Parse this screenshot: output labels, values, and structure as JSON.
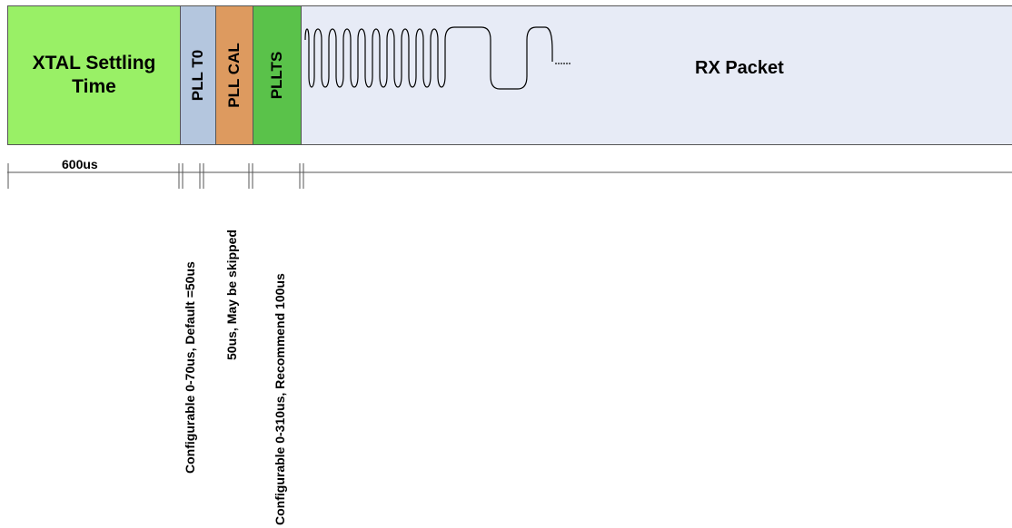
{
  "phases": {
    "xtal": {
      "label": "XTAL Settling Time",
      "color": "#99f066",
      "duration": "600us"
    },
    "pllto": {
      "label": "PLL T0",
      "color": "#b4c6de",
      "note": "Configurable 0-70us, Default =50us"
    },
    "pllcal": {
      "label": "PLL CAL",
      "color": "#dd9a5f",
      "note": "50us, May be skipped"
    },
    "pllts": {
      "label": "PLLTS",
      "color": "#5ac24a",
      "note": "Configurable 0-310us, Recommend 100us"
    },
    "rx": {
      "label": "RX Packet",
      "color": "#e7ebf6"
    }
  }
}
